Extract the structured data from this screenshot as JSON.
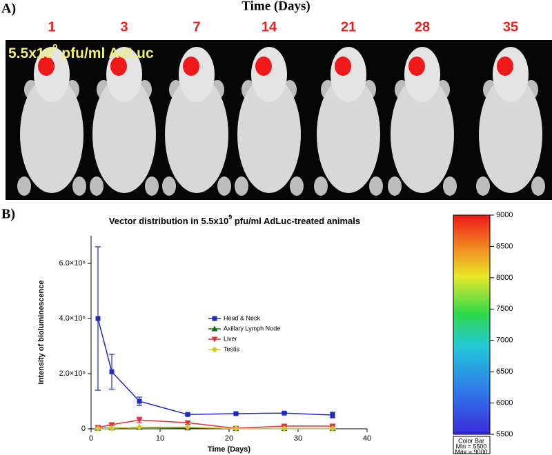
{
  "panel_a": {
    "label": "A)",
    "axis_title": "Time (Days)",
    "days": [
      "1",
      "3",
      "7",
      "14",
      "21",
      "28",
      "35"
    ],
    "overlay": {
      "text": "5.5x10",
      "sup": "9",
      "rest": " pfu/ml AdLuc"
    }
  },
  "panel_b_label": "B)",
  "chart_data": {
    "type": "line",
    "title": "Vector distribution in 5.5x10",
    "title_sup": "9",
    "title_end": " pfu/ml AdLuc-treated animals",
    "x_label": "Time (Days)",
    "y_label": "Intensity of bioluminescence",
    "x": [
      1,
      3,
      7,
      14,
      21,
      28,
      35
    ],
    "xlim": [
      0,
      40
    ],
    "xticks": [
      0,
      10,
      20,
      30,
      40
    ],
    "ylim": [
      0,
      7000000
    ],
    "yticks": [
      0,
      {
        "value": 2000000,
        "label": "2.0×10⁶"
      },
      {
        "value": 4000000,
        "label": "4.0×10⁶"
      },
      {
        "value": 6000000,
        "label": "6.0×10⁶"
      }
    ],
    "series": [
      {
        "name": "Head & Neck",
        "color": "#1f2bbf",
        "marker": "square",
        "values": [
          4000000,
          2070000,
          1000000,
          520000,
          550000,
          570000,
          500000
        ],
        "errors": [
          2600000,
          630000,
          150000,
          30000,
          30000,
          30000,
          100000
        ]
      },
      {
        "name": "Axillary Lymph Node",
        "color": "#1a6b1a",
        "marker": "triangle-up",
        "values": [
          20000,
          30000,
          50000,
          30000,
          10000,
          10000,
          10000
        ]
      },
      {
        "name": "Liver",
        "color": "#e0303a",
        "marker": "triangle-down",
        "values": [
          50000,
          150000,
          320000,
          220000,
          20000,
          100000,
          100000
        ],
        "errors": [
          20000,
          40000,
          100000,
          60000,
          10000,
          20000,
          20000
        ]
      },
      {
        "name": "Testis",
        "color": "#d4c82a",
        "marker": "diamond",
        "values": [
          10000,
          20000,
          60000,
          60000,
          10000,
          10000,
          10000
        ]
      }
    ]
  },
  "color_bar": {
    "lim": [
      5500,
      9000
    ],
    "ticks": [
      5500,
      6000,
      6500,
      7000,
      7500,
      8000,
      8500,
      9000
    ],
    "caption": "Color Bar",
    "min_text": "Min = 5500",
    "max_text": "Max = 9000"
  }
}
